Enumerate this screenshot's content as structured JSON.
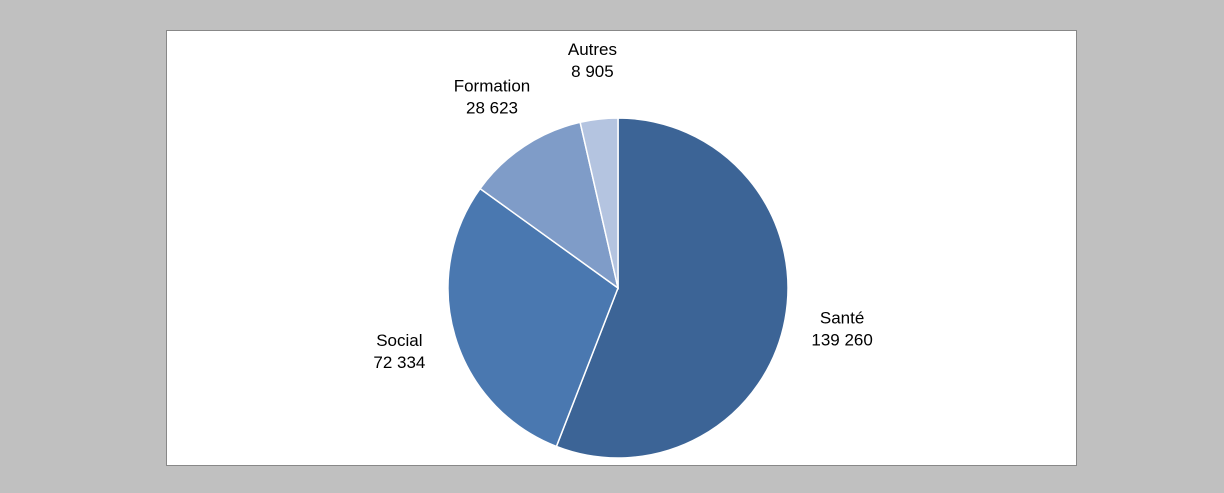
{
  "chart_data": {
    "type": "pie",
    "categories": [
      "Santé",
      "Social",
      "Formation",
      "Autres"
    ],
    "values": [
      139260,
      72334,
      28623,
      8905
    ],
    "value_labels": [
      "139 260",
      "72 334",
      "28 623",
      "8 905"
    ],
    "colors": [
      "#3c6496",
      "#4a78b0",
      "#7f9cc8",
      "#b4c4e0"
    ]
  }
}
